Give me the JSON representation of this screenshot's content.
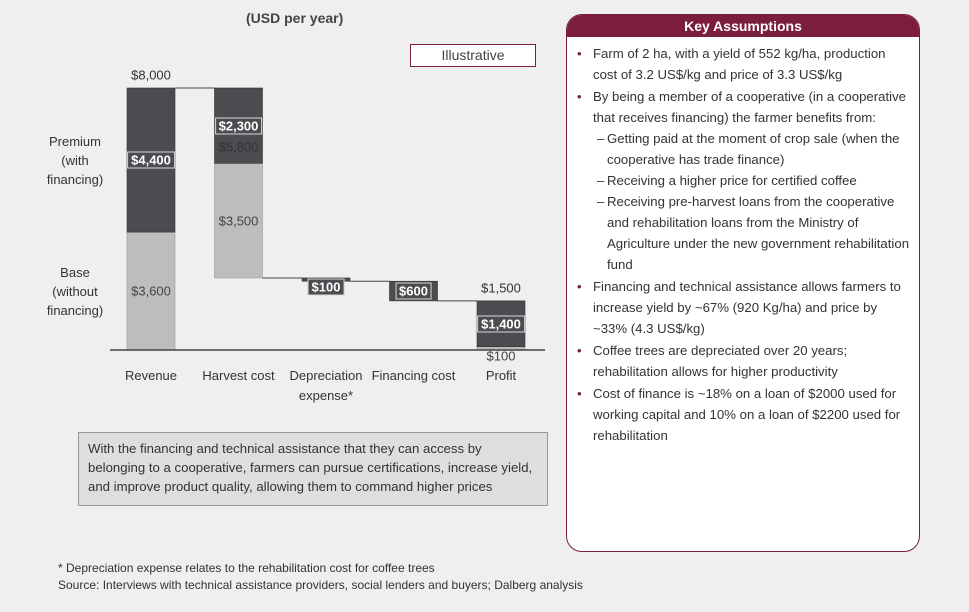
{
  "chart_data": {
    "type": "waterfall",
    "subtitle": "(USD per year)",
    "annotation": "Illustrative",
    "categories": [
      "Revenue",
      "Harvest cost",
      "Depreciation expense*",
      "Financing cost",
      "Profit"
    ],
    "series": [
      {
        "name": "Base (without financing)",
        "color": "#bdbdbd",
        "values": [
          3600,
          3500,
          null,
          null,
          100
        ],
        "value_labels": [
          "$3,600",
          "$3,500",
          null,
          null,
          "$100"
        ]
      },
      {
        "name": "Premium (with financing)",
        "color": "#4b4b50",
        "values": [
          4400,
          2300,
          null,
          null,
          1400
        ],
        "value_labels": [
          "$4,400",
          "$2,300",
          null,
          null,
          "$1,400"
        ]
      }
    ],
    "steps": {
      "color": "#4b4b50",
      "values": [
        null,
        null,
        100,
        600,
        null
      ],
      "value_labels": [
        null,
        null,
        "$100",
        "$600",
        null
      ]
    },
    "totals": [
      8000,
      5800,
      null,
      null,
      1500
    ],
    "total_labels": [
      "$8,000",
      "$5,800",
      null,
      null,
      "$1,500"
    ],
    "callout": "With the financing and technical assistance that they can access by belonging to a cooperative, farmers can pursue certifications, increase yield, and improve product quality, allowing them to command higher prices",
    "footnote": "* Depreciation expense relates to the rehabilitation cost for coffee trees",
    "source": "Source: Interviews with  technical assistance providers, social lenders and buyers; Dalberg analysis"
  },
  "key_assumptions": {
    "title": "Key Assumptions",
    "items": [
      {
        "text": "Farm of 2 ha, with a yield of 552 kg/ha, production cost of 3.2 US$/kg and price of 3.3 US$/kg",
        "subitems": []
      },
      {
        "text": "By being a member of a cooperative (in a cooperative that receives financing) the farmer benefits from:",
        "subitems": [
          "Getting paid at the moment of crop sale (when the cooperative has trade finance)",
          "Receiving a higher price for certified coffee",
          "Receiving pre-harvest loans from the cooperative and rehabilitation loans from the Ministry of Agriculture under the new government rehabilitation fund"
        ]
      },
      {
        "text": "Financing and technical assistance allows farmers to increase yield by ~67% (920 Kg/ha) and price by ~33% (4.3 US$/kg)",
        "subitems": []
      },
      {
        "text": "Coffee trees are depreciated over 20 years; rehabilitation allows for higher productivity",
        "subitems": []
      },
      {
        "text": "Cost of finance is ~18% on a loan of $2000 used for working capital and 10% on a loan of $2200 used for rehabilitation",
        "subitems": []
      }
    ]
  }
}
